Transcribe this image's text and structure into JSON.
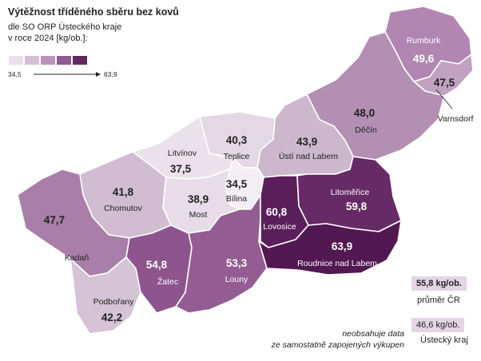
{
  "title": "Výtěžnost tříděného sběru bez kovů",
  "subtitle_line1": "dle SO ORP Ústeckého kraje",
  "subtitle_line2": "v roce 2024 [kg/ob.]:",
  "scale": {
    "min_label": "34,5",
    "max_label": "63,9",
    "colors": [
      "#eadfea",
      "#d3c0d3",
      "#b894b8",
      "#8e5c8e",
      "#5e2a5e"
    ]
  },
  "regions": [
    {
      "id": "rumburk",
      "name": "Rumburk",
      "value": "49,6",
      "color": "#b186b1"
    },
    {
      "id": "varnsdorf",
      "name": "Varnsdorf",
      "value": "47,5",
      "color": "#c1a2c1"
    },
    {
      "id": "decin",
      "name": "Děčín",
      "value": "48,0",
      "color": "#b48fb4"
    },
    {
      "id": "usti",
      "name": "Ústí nad Labem",
      "value": "43,9",
      "color": "#ccb7cc"
    },
    {
      "id": "teplice",
      "name": "Teplice",
      "value": "40,3",
      "color": "#e4d8e4"
    },
    {
      "id": "litvinov",
      "name": "Litvínov",
      "value": "37,5",
      "color": "#ebe1eb"
    },
    {
      "id": "bilina",
      "name": "Bílina",
      "value": "34,5",
      "color": "#f4eef4"
    },
    {
      "id": "most",
      "name": "Most",
      "value": "38,9",
      "color": "#e7dce7"
    },
    {
      "id": "chomutov",
      "name": "Chomutov",
      "value": "41,8",
      "color": "#d1bcd1"
    },
    {
      "id": "kadan",
      "name": "Kadaň",
      "value": "47,7",
      "color": "#a97fa9"
    },
    {
      "id": "podborany",
      "name": "Podbořany",
      "value": "42,2",
      "color": "#d6c3d6"
    },
    {
      "id": "zatec",
      "name": "Žatec",
      "value": "54,8",
      "color": "#8d548d"
    },
    {
      "id": "louny",
      "name": "Louny",
      "value": "53,3",
      "color": "#935d93"
    },
    {
      "id": "lovosice",
      "name": "Lovosice",
      "value": "60,8",
      "color": "#5a1f5a"
    },
    {
      "id": "litomerice",
      "name": "Litoměřice",
      "value": "59,8",
      "color": "#662a66"
    },
    {
      "id": "roudnice",
      "name": "Roudnice nad Labem",
      "value": "63,9",
      "color": "#521852"
    }
  ],
  "legend": {
    "cr_value": "55,8 kg/ob.",
    "cr_label": "průměr ČR",
    "kraj_value": "46,6 kg/ob.",
    "kraj_label": "Ústecký kraj"
  },
  "note_line1": "neobsahuje data",
  "note_line2": "ze samostatně zapojených výkupen"
}
